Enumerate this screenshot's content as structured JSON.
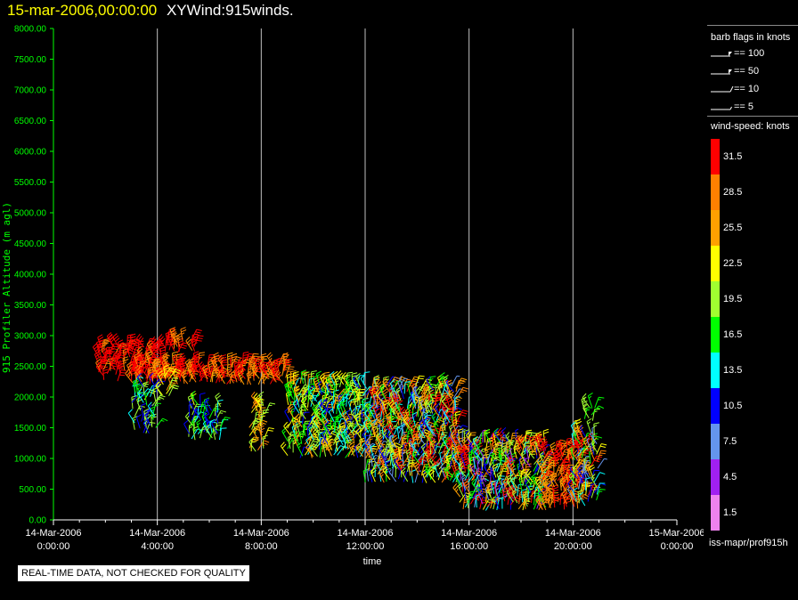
{
  "header": {
    "date": "15-mar-2006,00:00:00",
    "title": "XYWind:915winds."
  },
  "chart_data": {
    "type": "wind-barb-timeseries",
    "ylabel": "915 Profiler Altitude (m agl)",
    "xlabel": "time",
    "ylim": [
      0,
      8000
    ],
    "y_ticks": [
      "0.00",
      "500.00",
      "1000.00",
      "1500.00",
      "2000.00",
      "2500.00",
      "3000.00",
      "3500.00",
      "4000.00",
      "4500.00",
      "5000.00",
      "5500.00",
      "6000.00",
      "6500.00",
      "7000.00",
      "7500.00",
      "8000.00"
    ],
    "x_ticks": [
      {
        "hour": 0,
        "date": "14-Mar-2006",
        "time": "0:00:00"
      },
      {
        "hour": 4,
        "date": "14-Mar-2006",
        "time": "4:00:00"
      },
      {
        "hour": 8,
        "date": "14-Mar-2006",
        "time": "8:00:00"
      },
      {
        "hour": 12,
        "date": "14-Mar-2006",
        "time": "12:00:00"
      },
      {
        "hour": 16,
        "date": "14-Mar-2006",
        "time": "16:00:00"
      },
      {
        "hour": 20,
        "date": "14-Mar-2006",
        "time": "20:00:00"
      },
      {
        "hour": 24,
        "date": "15-Mar-2006",
        "time": "0:00:00"
      }
    ],
    "xlim_hours": [
      0,
      24
    ],
    "grid_hours": [
      4,
      8,
      12,
      16,
      20
    ],
    "clusters": [
      {
        "hours": [
          1.7,
          4.2
        ],
        "alt": [
          2250,
          2850
        ],
        "speeds": [
          29,
          33
        ]
      },
      {
        "hours": [
          3.0,
          9.0
        ],
        "alt": [
          2200,
          2550
        ],
        "speeds": [
          26,
          33
        ]
      },
      {
        "hours": [
          3.0,
          4.0
        ],
        "alt": [
          1400,
          2200
        ],
        "speeds": [
          9,
          22
        ]
      },
      {
        "hours": [
          4.1,
          4.5
        ],
        "alt": [
          2000,
          2350
        ],
        "speeds": [
          20,
          26
        ]
      },
      {
        "hours": [
          4.3,
          5.5
        ],
        "alt": [
          2700,
          2950
        ],
        "speeds": [
          28,
          33
        ]
      },
      {
        "hours": [
          5.2,
          6.5
        ],
        "alt": [
          1300,
          1900
        ],
        "speeds": [
          8,
          22
        ]
      },
      {
        "hours": [
          7.5,
          8.2
        ],
        "alt": [
          1100,
          1900
        ],
        "speeds": [
          18,
          28
        ]
      },
      {
        "hours": [
          9.0,
          12.0
        ],
        "alt": [
          1000,
          2250
        ],
        "speeds": [
          10,
          26
        ]
      },
      {
        "hours": [
          12.0,
          15.6
        ],
        "alt": [
          600,
          2200
        ],
        "speeds": [
          6,
          33
        ]
      },
      {
        "hours": [
          15.6,
          19.0
        ],
        "alt": [
          150,
          1300
        ],
        "speeds": [
          4,
          33
        ]
      },
      {
        "hours": [
          18.8,
          20.4
        ],
        "alt": [
          150,
          1200
        ],
        "speeds": [
          25,
          33
        ]
      },
      {
        "hours": [
          20.0,
          21.0
        ],
        "alt": [
          200,
          1450
        ],
        "speeds": [
          6,
          33
        ]
      },
      {
        "hours": [
          20.4,
          20.9
        ],
        "alt": [
          1600,
          2000
        ],
        "speeds": [
          15,
          20
        ]
      }
    ]
  },
  "legend": {
    "barb_title": "barb flags in knots",
    "barbs": [
      {
        "label": "== 100",
        "kind": "pennant"
      },
      {
        "label": "== 50",
        "kind": "pennant"
      },
      {
        "label": "== 10",
        "kind": "full"
      },
      {
        "label": "== 5",
        "kind": "half"
      }
    ],
    "speed_title": "wind-speed: knots",
    "colorbar": [
      {
        "label": "31.5",
        "color": "#ff0000"
      },
      {
        "label": "28.5",
        "color": "#ff8000"
      },
      {
        "label": "25.5",
        "color": "#ffa000"
      },
      {
        "label": "22.5",
        "color": "#ffff00"
      },
      {
        "label": "19.5",
        "color": "#a0ff30"
      },
      {
        "label": "16.5",
        "color": "#00ff00"
      },
      {
        "label": "13.5",
        "color": "#00ffff"
      },
      {
        "label": "10.5",
        "color": "#0000ff"
      },
      {
        "label": "7.5",
        "color": "#6495ed"
      },
      {
        "label": "4.5",
        "color": "#a020f0"
      },
      {
        "label": "1.5",
        "color": "#ee82ee"
      }
    ],
    "source": "iss-mapr/prof915h"
  },
  "colors": {
    "axis": "#00ff00",
    "grid": "#c0c0c0",
    "header_date": "#ffff00"
  },
  "qc_notice": "REAL-TIME DATA, NOT CHECKED FOR QUALITY"
}
